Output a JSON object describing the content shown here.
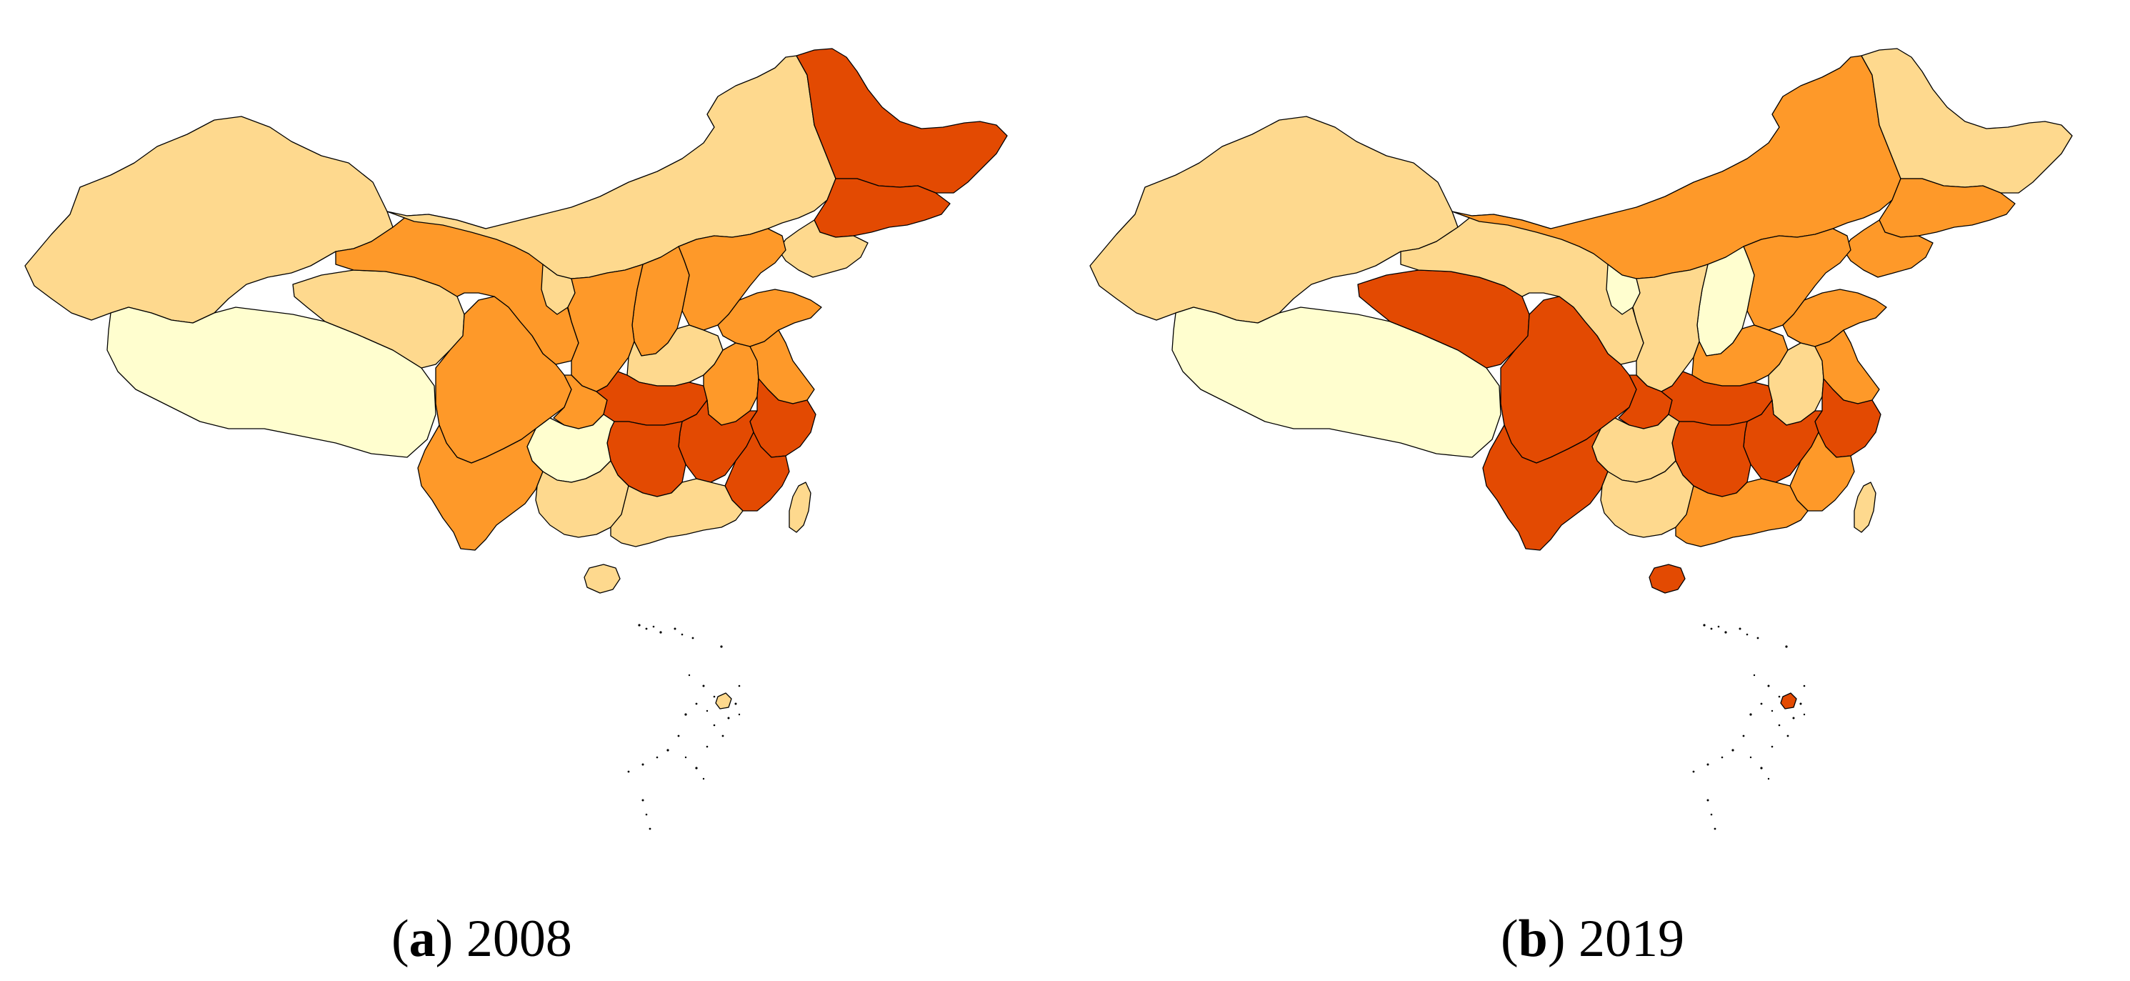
{
  "colors": {
    "class_1": "#fffecf",
    "class_2": "#fed98e",
    "class_3": "#fe9929",
    "class_4": "#e55a0f",
    "class_5": "#e34a02",
    "outline": "#000000"
  },
  "panels": [
    {
      "id": "a",
      "label": "a",
      "year": "2008",
      "region_classes": {
        "xinjiang": "class_2",
        "tibet": "class_1",
        "qinghai": "class_2",
        "gansu": "class_3",
        "inner_mongolia": "class_2",
        "heilongjiang": "class_5",
        "jilin": "class_5",
        "liaoning": "class_2",
        "sichuan": "class_3",
        "yunnan": "class_3",
        "guizhou": "class_1",
        "chongqing": "class_3",
        "shaanxi": "class_3",
        "ningxia": "class_2",
        "shanxi": "class_3",
        "hebei": "class_3",
        "beijing": "class_5",
        "shandong": "class_3",
        "henan": "class_2",
        "hubei": "class_5",
        "hunan": "class_5",
        "jiangxi": "class_5",
        "anhui": "class_3",
        "jiangsu": "class_3",
        "zhejiang": "class_5",
        "fujian": "class_5",
        "guangxi": "class_2",
        "guangdong": "class_2",
        "hainan": "class_2",
        "taiwan": "class_2",
        "south_sea_islands": "class_2"
      }
    },
    {
      "id": "b",
      "label": "b",
      "year": "2019",
      "region_classes": {
        "xinjiang": "class_2",
        "tibet": "class_1",
        "qinghai": "class_5",
        "gansu": "class_2",
        "inner_mongolia": "class_3",
        "heilongjiang": "class_2",
        "jilin": "class_3",
        "liaoning": "class_3",
        "sichuan": "class_5",
        "yunnan": "class_5",
        "guizhou": "class_2",
        "chongqing": "class_5",
        "shaanxi": "class_2",
        "ningxia": "class_1",
        "shanxi": "class_1",
        "hebei": "class_3",
        "beijing": "class_3",
        "shandong": "class_3",
        "henan": "class_3",
        "hubei": "class_5",
        "hunan": "class_5",
        "jiangxi": "class_5",
        "anhui": "class_2",
        "jiangsu": "class_3",
        "zhejiang": "class_5",
        "fujian": "class_3",
        "guangxi": "class_2",
        "guangdong": "class_3",
        "hainan": "class_5",
        "taiwan": "class_2",
        "south_sea_islands": "class_5"
      }
    }
  ]
}
